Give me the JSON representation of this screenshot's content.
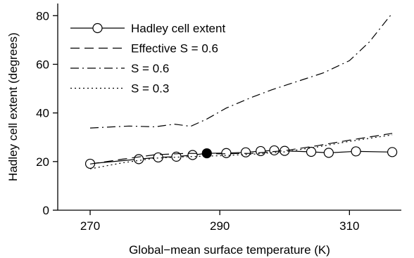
{
  "chart_data": {
    "type": "line",
    "title": "",
    "xlabel": "Global−mean surface temperature (K)",
    "ylabel": "Hadley cell extent (degrees)",
    "xlim": [
      265,
      318
    ],
    "ylim": [
      0,
      85
    ],
    "xticks": [
      270,
      290,
      310
    ],
    "xtick_labels": [
      "270",
      "290",
      "310"
    ],
    "yticks": [
      0,
      20,
      40,
      60,
      80
    ],
    "ytick_labels": [
      "0",
      "20",
      "40",
      "60",
      "80"
    ],
    "grid": false,
    "legend_position": "top-left",
    "series": [
      {
        "name": "Hadley cell extent",
        "style": "solid-circles",
        "x": [
          270,
          277.5,
          280.5,
          283.3,
          285.8,
          288,
          291,
          294,
          296.3,
          298.4,
          300,
          304.1,
          306.8,
          311,
          316.6
        ],
        "y": [
          19.1,
          21.0,
          21.7,
          22.0,
          22.7,
          23.4,
          23.5,
          23.8,
          24.3,
          24.6,
          24.4,
          24.0,
          23.6,
          24.2,
          23.9
        ],
        "highlight_index": 5
      },
      {
        "name": "Effective S = 0.6",
        "style": "dashed",
        "x": [
          270,
          275,
          280,
          285,
          290,
          295,
          300,
          305,
          310,
          316.6
        ],
        "y": [
          19.0,
          21.0,
          22.8,
          23.4,
          23.2,
          23.4,
          24.5,
          26.5,
          28.8,
          31.6
        ]
      },
      {
        "name": "S = 0.6",
        "style": "dash-dot",
        "x": [
          270,
          276,
          280,
          283,
          285.5,
          288,
          291,
          295,
          298,
          302,
          306,
          310,
          313,
          316.6
        ],
        "y": [
          33.8,
          34.6,
          34.3,
          35.4,
          34.5,
          37.5,
          42.0,
          46.5,
          49.5,
          53.0,
          56.5,
          61.5,
          69.0,
          81.0
        ]
      },
      {
        "name": "S = 0.3",
        "style": "dotted",
        "x": [
          270,
          275,
          280,
          285,
          290,
          295,
          300,
          305,
          310,
          316.6
        ],
        "y": [
          17.0,
          19.5,
          21.4,
          22.0,
          22.4,
          23.0,
          24.0,
          26.0,
          28.3,
          31.0
        ]
      }
    ]
  },
  "colors": {
    "line": "#000000",
    "background": "#ffffff",
    "highlight_fill": "#000000"
  }
}
